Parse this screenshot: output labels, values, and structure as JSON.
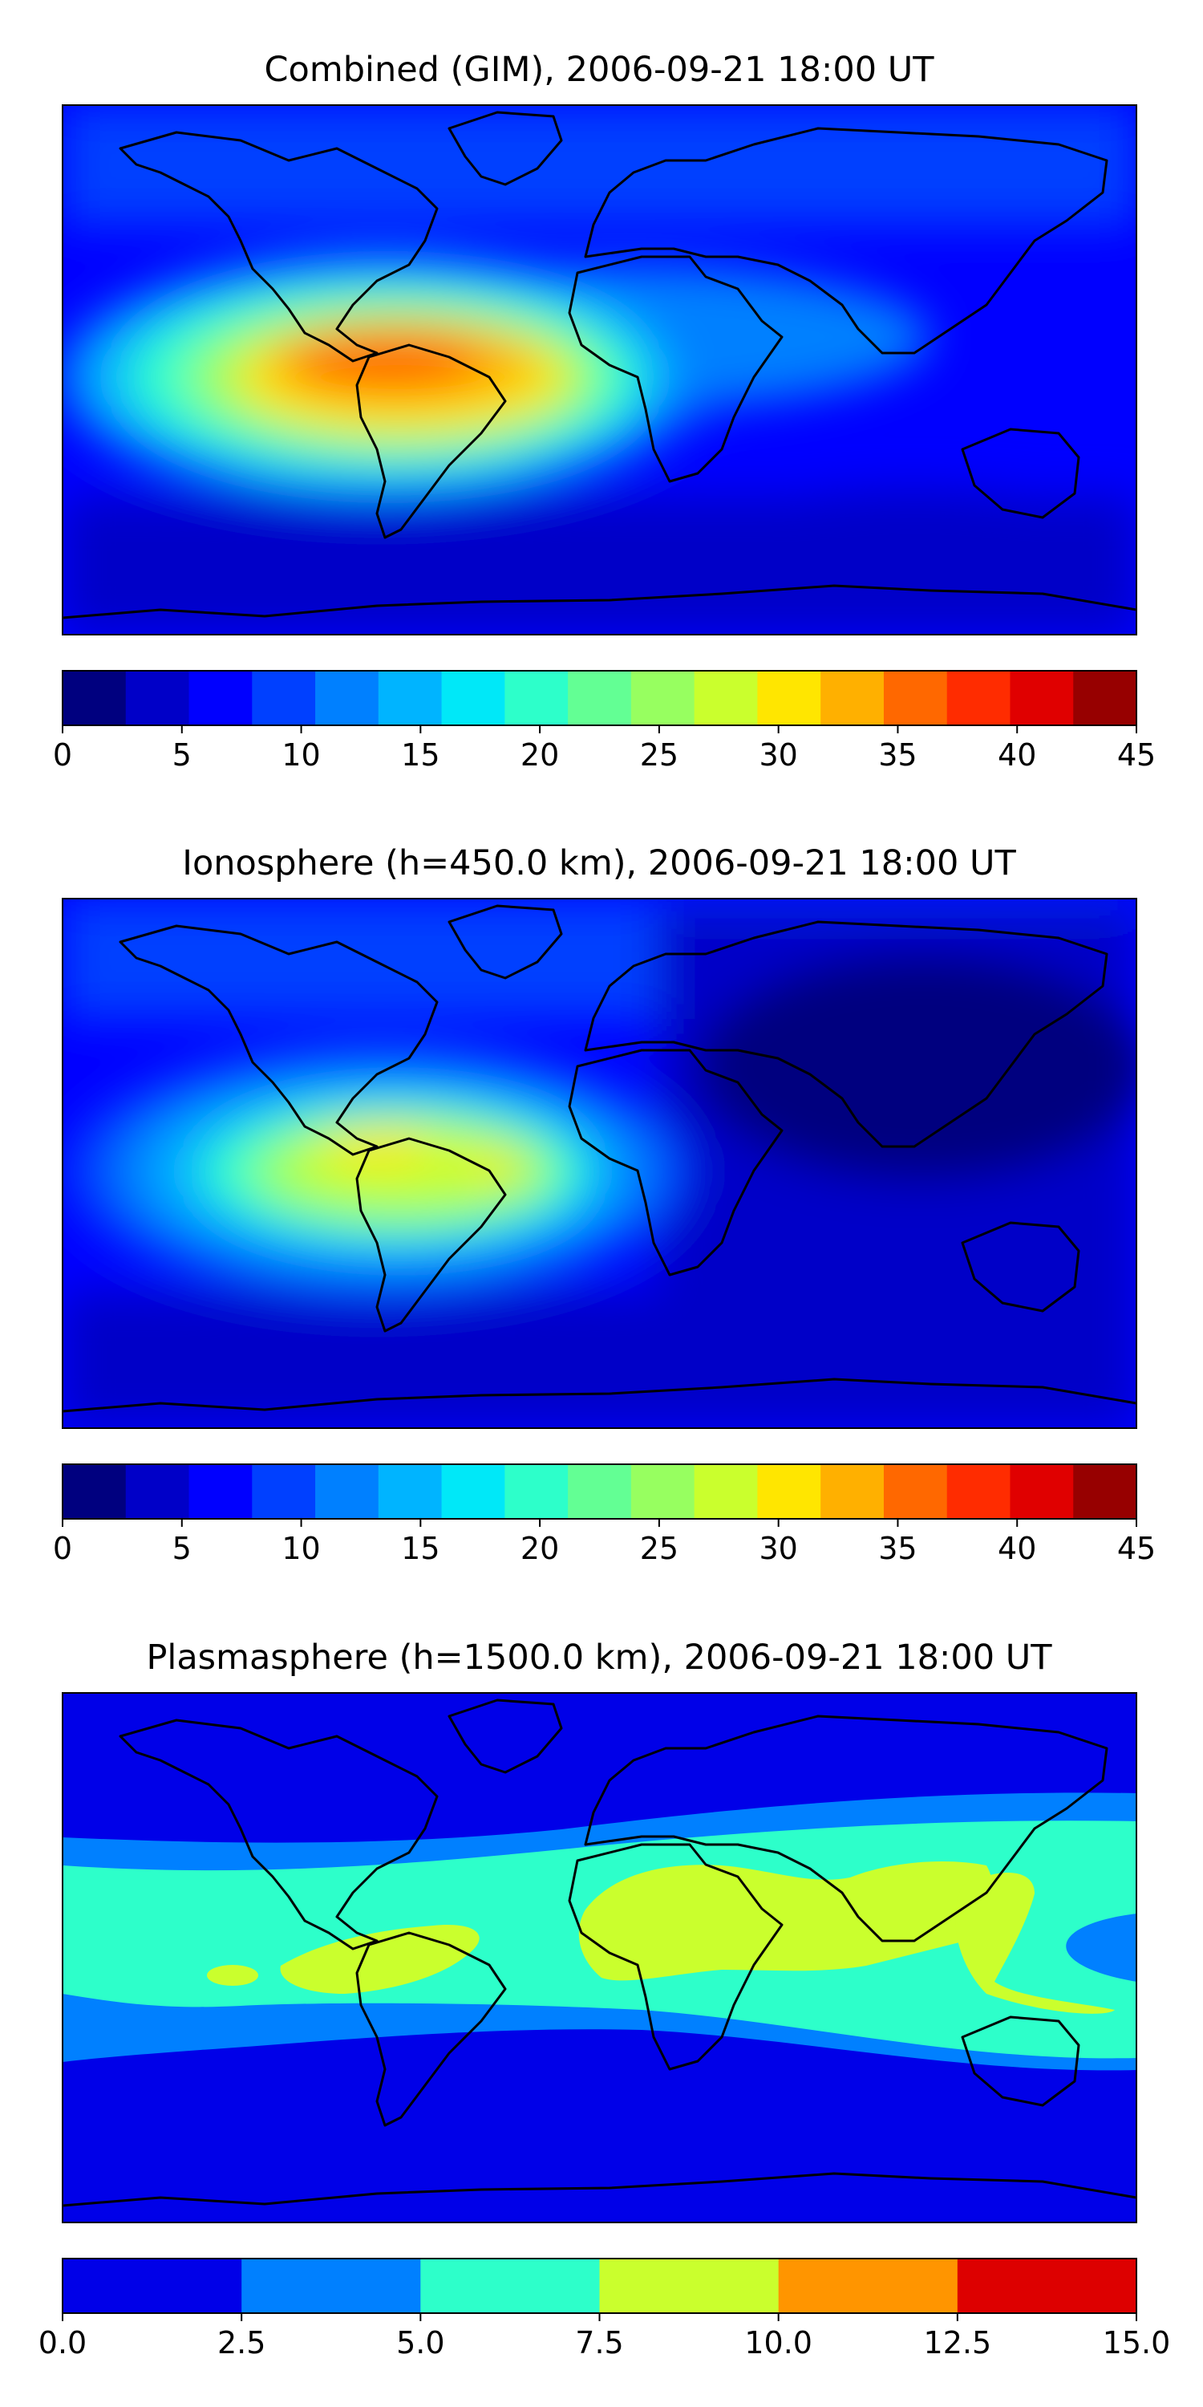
{
  "chart_data": [
    {
      "type": "heatmap",
      "title": "Combined (GIM), 2006-09-21 18:00 UT",
      "colorbar": {
        "ticks": [
          "0",
          "5",
          "10",
          "15",
          "20",
          "25",
          "30",
          "35",
          "40",
          "45"
        ],
        "min": 0,
        "max": 45,
        "step": 2.5,
        "colors": [
          "#00007f",
          "#0000c8",
          "#0000ff",
          "#0040ff",
          "#0080ff",
          "#00b4ff",
          "#00e8f8",
          "#2dffca",
          "#63ff94",
          "#97ff60",
          "#caff2d",
          "#ffe600",
          "#ffb000",
          "#ff6800",
          "#ff2c00",
          "#e00000",
          "#970000"
        ]
      },
      "field_centers": [
        {
          "lon": -55,
          "lat": 8,
          "value": 36
        },
        {
          "lon": -70,
          "lat": 10,
          "value": 34
        },
        {
          "lon": -35,
          "lat": 10,
          "value": 33
        },
        {
          "lon": -50,
          "lat": -8,
          "value": 30
        }
      ],
      "field_background": 7
    },
    {
      "type": "heatmap",
      "title": "Ionosphere  (h=450.0 km), 2006-09-21 18:00 UT",
      "colorbar": {
        "ticks": [
          "0",
          "5",
          "10",
          "15",
          "20",
          "25",
          "30",
          "35",
          "40",
          "45"
        ],
        "min": 0,
        "max": 45,
        "step": 2.5,
        "colors": [
          "#00007f",
          "#0000c8",
          "#0000ff",
          "#0040ff",
          "#0080ff",
          "#00b4ff",
          "#00e8f8",
          "#2dffca",
          "#63ff94",
          "#97ff60",
          "#caff2d",
          "#ffe600",
          "#ffb000",
          "#ff6800",
          "#ff2c00",
          "#e00000",
          "#970000"
        ]
      },
      "field_centers": [
        {
          "lon": -55,
          "lat": 8,
          "value": 29
        },
        {
          "lon": -35,
          "lat": 5,
          "value": 28
        },
        {
          "lon": -65,
          "lat": -10,
          "value": 26
        }
      ],
      "field_background": 4
    },
    {
      "type": "heatmap",
      "title": "Plasmasphere (h=1500.0 km), 2006-09-21 18:00 UT",
      "colorbar": {
        "ticks": [
          "0.0",
          "2.5",
          "5.0",
          "7.5",
          "10.0",
          "12.5",
          "15.0"
        ],
        "min": 0,
        "max": 15,
        "step": 2.5,
        "colors": [
          "#0000e8",
          "#0080ff",
          "#2dffca",
          "#caff2d",
          "#ff9500",
          "#dd0000"
        ]
      },
      "field_centers": [
        {
          "lon": 20,
          "lat": 5,
          "value": 8.5
        },
        {
          "lon": 80,
          "lat": 8,
          "value": 8.2
        },
        {
          "lon": -70,
          "lat": 0,
          "value": 8
        }
      ],
      "field_background": 2
    }
  ]
}
